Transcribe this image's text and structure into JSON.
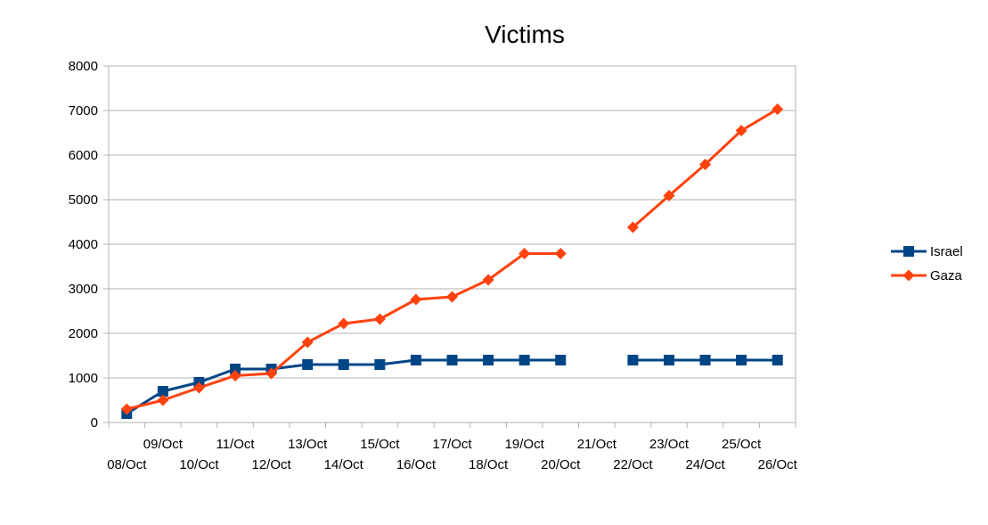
{
  "chart_data": {
    "type": "line",
    "title": "Victims",
    "xlabel": "",
    "ylabel": "",
    "ylim": [
      0,
      8000
    ],
    "y_ticks": [
      0,
      1000,
      2000,
      3000,
      4000,
      5000,
      6000,
      7000,
      8000
    ],
    "grid": true,
    "legend_position": "right",
    "categories": [
      "08/Oct",
      "09/Oct",
      "10/Oct",
      "11/Oct",
      "12/Oct",
      "13/Oct",
      "14/Oct",
      "15/Oct",
      "16/Oct",
      "17/Oct",
      "18/Oct",
      "19/Oct",
      "20/Oct",
      "21/Oct",
      "22/Oct",
      "23/Oct",
      "24/Oct",
      "25/Oct",
      "26/Oct"
    ],
    "series": [
      {
        "name": "Israel",
        "color": "#004586",
        "marker": "square",
        "values": [
          200,
          700,
          900,
          1200,
          1200,
          1300,
          1300,
          1300,
          1400,
          1400,
          1400,
          1400,
          1400,
          null,
          1400,
          1400,
          1400,
          1400,
          1400
        ]
      },
      {
        "name": "Gaza",
        "color": "#ff420e",
        "marker": "diamond",
        "values": [
          300,
          500,
          780,
          1050,
          1100,
          1800,
          2220,
          2320,
          2760,
          2820,
          3200,
          3790,
          3790,
          null,
          4380,
          5090,
          5790,
          6550,
          7030
        ]
      }
    ]
  }
}
